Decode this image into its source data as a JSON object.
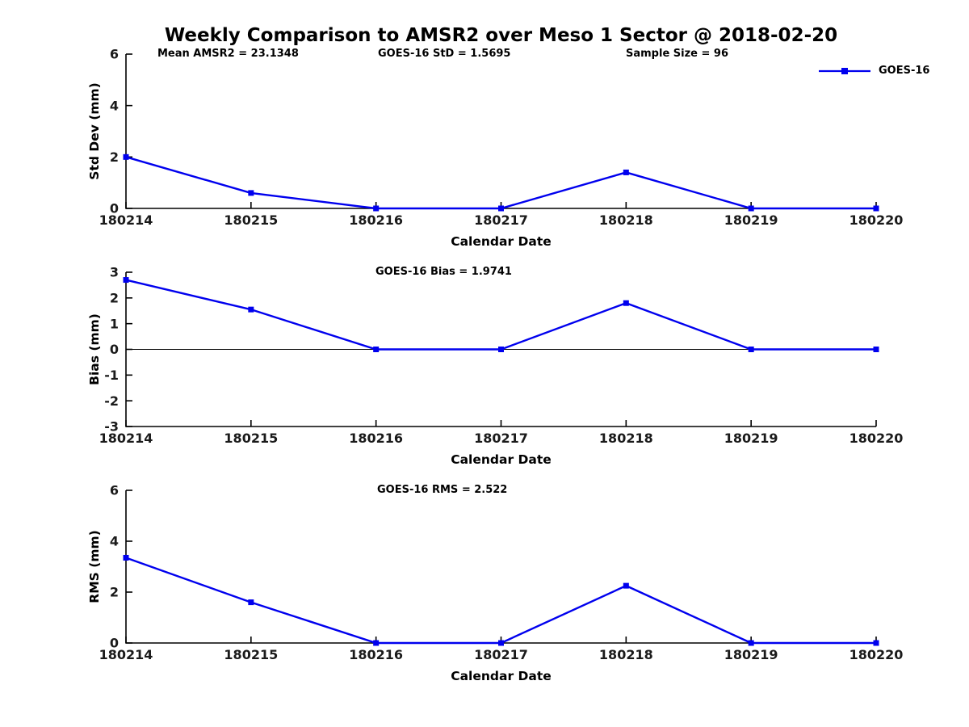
{
  "title": "Weekly Comparison to AMSR2 over Meso 1 Sector @ 2018-02-20",
  "legend": {
    "label": "GOES-16",
    "position": "top-right"
  },
  "colors": {
    "series": "#0000EE",
    "axis": "#000000",
    "tick_text": "#1a1a1a",
    "text": "#000000",
    "background": "#ffffff"
  },
  "chart_data": [
    {
      "type": "line",
      "ylabel": "Std Dev (mm)",
      "xlabel": "Calendar Date",
      "ylim": [
        0,
        6
      ],
      "yticks": [
        0,
        2,
        4,
        6
      ],
      "categories": [
        "180214",
        "180215",
        "180216",
        "180217",
        "180218",
        "180219",
        "180220"
      ],
      "series": [
        {
          "name": "GOES-16",
          "values": [
            2.0,
            0.6,
            0.0,
            0.0,
            1.4,
            0.0,
            0.0
          ]
        }
      ],
      "zero_line": false,
      "grid": false,
      "annotations": [
        "Mean AMSR2 = 23.1348",
        "GOES-16 StD = 1.5695",
        "Sample Size = 96"
      ]
    },
    {
      "type": "line",
      "ylabel": "Bias (mm)",
      "xlabel": "Calendar Date",
      "ylim": [
        -3,
        3
      ],
      "yticks": [
        3,
        2,
        1,
        0,
        -1,
        -2,
        -3
      ],
      "categories": [
        "180214",
        "180215",
        "180216",
        "180217",
        "180218",
        "180219",
        "180220"
      ],
      "series": [
        {
          "name": "GOES-16",
          "values": [
            2.7,
            1.55,
            0.0,
            0.0,
            1.8,
            0.0,
            0.0
          ]
        }
      ],
      "zero_line": true,
      "grid": false,
      "annotations": [
        "GOES-16 Bias  = 1.9741"
      ]
    },
    {
      "type": "line",
      "ylabel": "RMS (mm)",
      "xlabel": "Calendar Date",
      "ylim": [
        0,
        6
      ],
      "yticks": [
        0,
        2,
        4,
        6
      ],
      "categories": [
        "180214",
        "180215",
        "180216",
        "180217",
        "180218",
        "180219",
        "180220"
      ],
      "series": [
        {
          "name": "GOES-16",
          "values": [
            3.35,
            1.6,
            0.0,
            0.0,
            2.25,
            0.0,
            0.0
          ]
        }
      ],
      "zero_line": false,
      "grid": false,
      "annotations": [
        "GOES-16 RMS = 2.522"
      ]
    }
  ]
}
